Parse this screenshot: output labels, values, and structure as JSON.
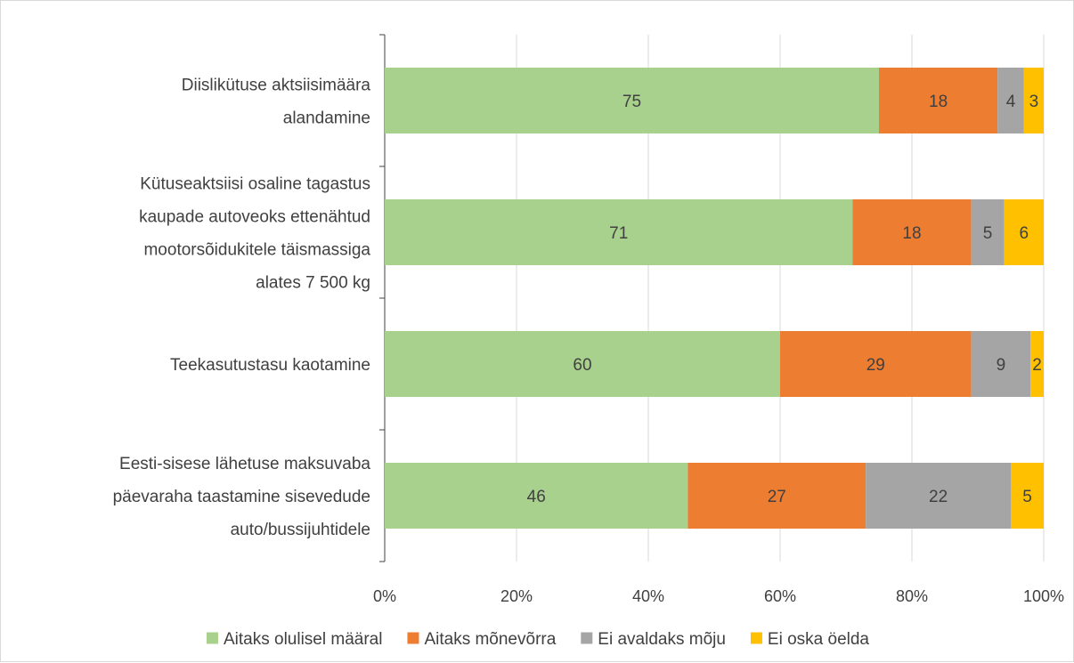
{
  "chart_data": {
    "type": "bar",
    "orientation": "horizontal",
    "stacked": "percent",
    "title": "",
    "xlabel": "",
    "ylabel": "",
    "xlim": [
      0,
      100
    ],
    "x_ticks": [
      "0%",
      "20%",
      "40%",
      "60%",
      "80%",
      "100%"
    ],
    "grid": true,
    "legend_position": "bottom",
    "categories": [
      [
        "Diislikütuse aktsiisimäära",
        "alandamine"
      ],
      [
        "Kütuseaktsiisi osaline tagastus",
        "kaupade autoveoks ettenähtud",
        "mootorsõidukitele täismassiga",
        "alates 7 500 kg"
      ],
      [
        "Teekasutustasu kaotamine"
      ],
      [
        "Eesti-sisese lähetuse maksuvaba",
        "päevaraha taastamine sisevedude",
        "auto/bussijuhtidele"
      ]
    ],
    "series": [
      {
        "name": "Aitaks olulisel määral",
        "color": "#a9d18e",
        "values": [
          75,
          71,
          60,
          46
        ]
      },
      {
        "name": "Aitaks mõnevõrra",
        "color": "#ed7d31",
        "values": [
          18,
          18,
          29,
          27
        ]
      },
      {
        "name": "Ei avaldaks mõju",
        "color": "#a5a5a5",
        "values": [
          4,
          5,
          9,
          22
        ]
      },
      {
        "name": "Ei oska öelda",
        "color": "#ffc000",
        "values": [
          3,
          6,
          2,
          5
        ]
      }
    ]
  }
}
